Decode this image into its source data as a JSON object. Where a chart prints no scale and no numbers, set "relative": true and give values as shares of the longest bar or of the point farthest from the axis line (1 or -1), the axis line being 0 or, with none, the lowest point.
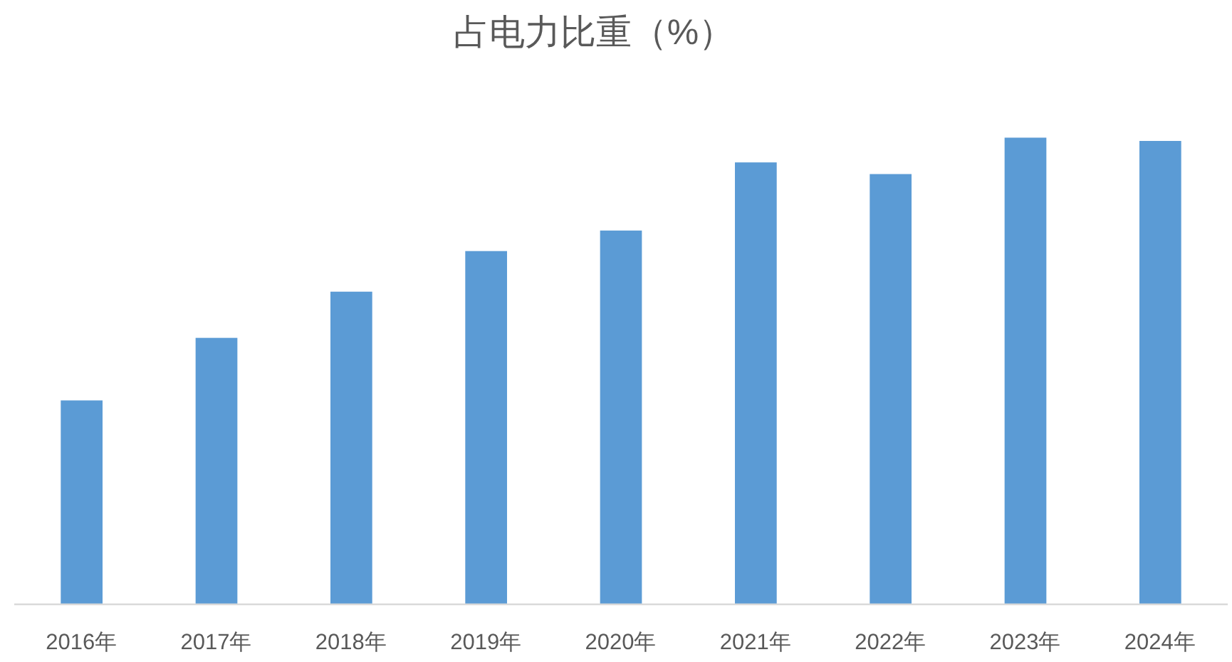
{
  "chart_data": {
    "type": "bar",
    "title": "占电力比重（%）",
    "categories": [
      "2016年",
      "2017年",
      "2018年",
      "2019年",
      "2020年",
      "2021年",
      "2022年",
      "2023年",
      "2024年"
    ],
    "values": [
      0.437,
      0.571,
      0.67,
      0.757,
      0.801,
      0.947,
      0.922,
      1,
      0.993
    ],
    "color": "#5b9bd5",
    "relative": true
  }
}
